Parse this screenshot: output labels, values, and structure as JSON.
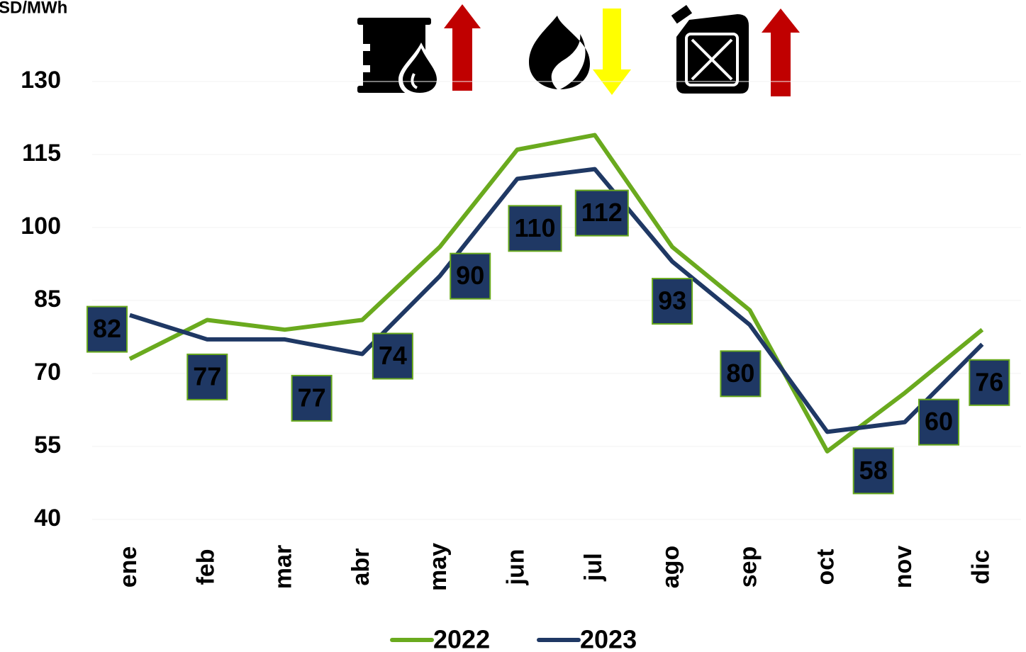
{
  "chart_data": {
    "type": "line",
    "y_axis_label": "SD/MWh",
    "categories": [
      "ene",
      "feb",
      "mar",
      "abr",
      "may",
      "jun",
      "jul",
      "ago",
      "sep",
      "oct",
      "nov",
      "dic"
    ],
    "series": [
      {
        "name": "2022",
        "color": "#6aaa1e",
        "values": [
          73,
          81,
          79,
          81,
          96,
          116,
          119,
          96,
          83,
          54,
          66,
          79
        ]
      },
      {
        "name": "2023",
        "color": "#1f3864",
        "values": [
          82,
          77,
          77,
          74,
          90,
          110,
          112,
          93,
          80,
          58,
          60,
          76
        ],
        "data_labels": true
      }
    ],
    "ylim": [
      40,
      130
    ],
    "yticks": [
      40,
      55,
      70,
      85,
      100,
      115,
      130
    ],
    "grid": true,
    "legend": "bottom"
  }
}
